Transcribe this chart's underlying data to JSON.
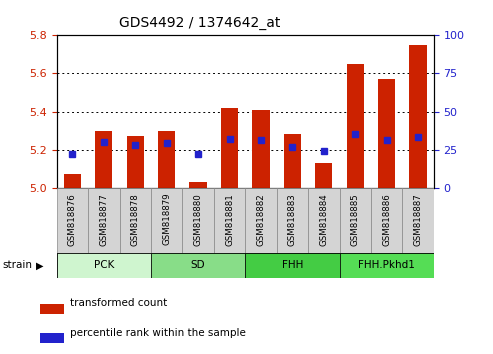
{
  "title": "GDS4492 / 1374642_at",
  "samples": [
    "GSM818876",
    "GSM818877",
    "GSM818878",
    "GSM818879",
    "GSM818880",
    "GSM818881",
    "GSM818882",
    "GSM818883",
    "GSM818884",
    "GSM818885",
    "GSM818886",
    "GSM818887"
  ],
  "red_values": [
    5.07,
    5.3,
    5.27,
    5.3,
    5.03,
    5.42,
    5.41,
    5.28,
    5.13,
    5.65,
    5.57,
    5.75
  ],
  "blue_values": [
    22,
    30,
    28,
    29,
    22,
    32,
    31,
    27,
    24,
    35,
    31,
    33
  ],
  "ylim_left": [
    5.0,
    5.8
  ],
  "ylim_right": [
    0,
    100
  ],
  "yticks_left": [
    5.0,
    5.2,
    5.4,
    5.6,
    5.8
  ],
  "yticks_right": [
    0,
    25,
    50,
    75,
    100
  ],
  "groups": [
    {
      "label": "PCK",
      "indices": [
        0,
        1,
        2
      ],
      "color": "#cff5cf"
    },
    {
      "label": "SD",
      "indices": [
        3,
        4,
        5
      ],
      "color": "#88dd88"
    },
    {
      "label": "FHH",
      "indices": [
        6,
        7,
        8
      ],
      "color": "#44cc44"
    },
    {
      "label": "FHH.Pkhd1",
      "indices": [
        9,
        10,
        11
      ],
      "color": "#55dd55"
    }
  ],
  "bar_color": "#cc2200",
  "blue_color": "#2222cc",
  "left_tick_color": "#cc2200",
  "right_tick_color": "#2222cc",
  "legend_red": "transformed count",
  "legend_blue": "percentile rank within the sample",
  "strain_label": "strain",
  "bar_width": 0.55
}
